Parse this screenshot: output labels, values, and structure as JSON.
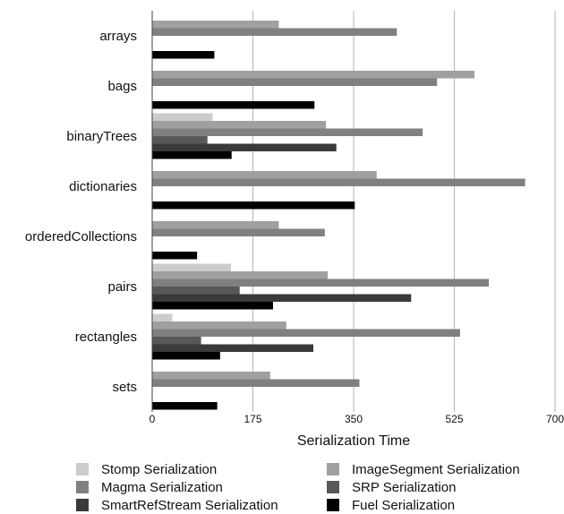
{
  "chart_data": {
    "type": "bar",
    "orientation": "horizontal",
    "xlabel": "Serialization Time",
    "xlim": [
      0,
      700
    ],
    "xticks": [
      "0",
      "175",
      "350",
      "525",
      "700"
    ],
    "grid": true,
    "legend_position": "bottom",
    "categories": [
      "arrays",
      "bags",
      "binaryTrees",
      "dictionaries",
      "orderedCollections",
      "pairs",
      "rectangles",
      "sets"
    ],
    "series": [
      {
        "name": "Stomp Serialization",
        "color": "#cccccc",
        "values": [
          null,
          null,
          105,
          null,
          null,
          137,
          35,
          null
        ]
      },
      {
        "name": "ImageSegment Serialization",
        "color": "#a0a0a0",
        "values": [
          220,
          560,
          302,
          390,
          220,
          305,
          233,
          205
        ]
      },
      {
        "name": "Magma Serialization",
        "color": "#808080",
        "values": [
          425,
          495,
          470,
          648,
          300,
          585,
          535,
          360
        ]
      },
      {
        "name": "SRP Serialization",
        "color": "#585858",
        "values": [
          null,
          null,
          96,
          null,
          null,
          152,
          85,
          null
        ]
      },
      {
        "name": "SmartRefStream Serialization",
        "color": "#3a3a3a",
        "values": [
          null,
          null,
          320,
          null,
          null,
          450,
          280,
          null
        ]
      },
      {
        "name": "Fuel Serialization",
        "color": "#000000",
        "values": [
          108,
          282,
          138,
          352,
          78,
          210,
          118,
          113
        ]
      }
    ]
  }
}
